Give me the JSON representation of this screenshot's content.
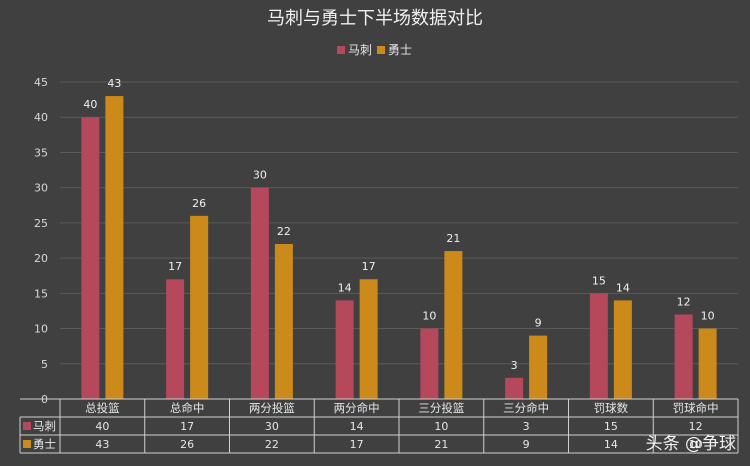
{
  "chart_data": {
    "type": "bar",
    "title": "马刺与勇士下半场数据对比",
    "categories": [
      "总投篮",
      "总命中",
      "两分投篮",
      "两分命中",
      "三分投篮",
      "三分命中",
      "罚球数",
      "罚球命中"
    ],
    "series": [
      {
        "name": "马刺",
        "color": "#b5485a",
        "values": [
          40,
          17,
          30,
          14,
          10,
          3,
          15,
          12
        ]
      },
      {
        "name": "勇士",
        "color": "#cc8a1a",
        "values": [
          43,
          26,
          22,
          17,
          21,
          9,
          14,
          10
        ]
      }
    ],
    "ylim": [
      0,
      45
    ],
    "yticks": [
      0,
      5,
      10,
      15,
      20,
      25,
      30,
      35,
      40,
      45
    ],
    "grid": true,
    "legend": "top-center",
    "data_table": true
  },
  "watermark": "头条 @争球"
}
